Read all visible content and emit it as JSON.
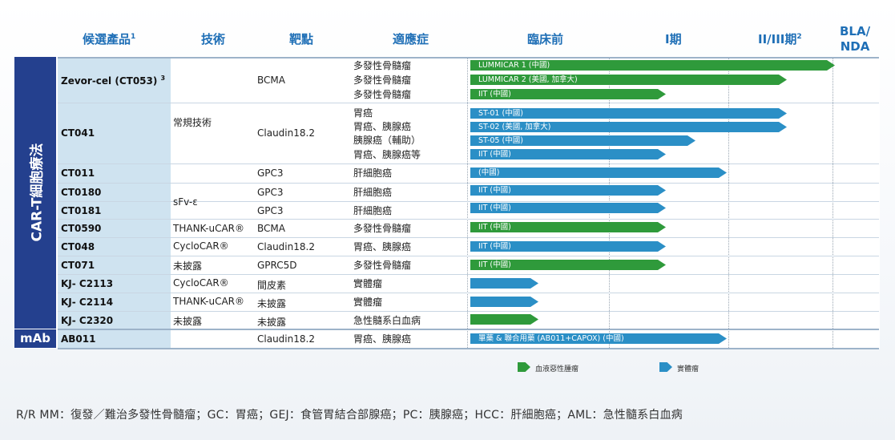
{
  "headers": {
    "candidate": "候選產品",
    "candidate_sup": "1",
    "technology": "技術",
    "target": "靶點",
    "indication": "適應症",
    "preclinical": "臨床前",
    "phase1": "I期",
    "phase23": "II/III期",
    "phase23_sup": "2",
    "bla_line1": "BLA/",
    "bla_line2": "NDA"
  },
  "side_labels": {
    "car_t": "CAR-T細胞療法",
    "mab": "mAb"
  },
  "products": {
    "zevor": "Zevor-cel (CT053)",
    "zevor_sup": "3",
    "ct041": "CT041",
    "ct011": "CT011",
    "ct0180": "CT0180",
    "ct0181": "CT0181",
    "ct0590": "CT0590",
    "ct048": "CT048",
    "ct071": "CT071",
    "kj2113": "KJ- C2113",
    "kj2114": "KJ- C2114",
    "kj2320": "KJ- C2320",
    "ab011": "AB011"
  },
  "technologies": {
    "conventional": "常規技術",
    "sfv": "sFv-ε",
    "ct0590": "THANK-uCAR®",
    "ct048": "CycloCAR®",
    "ct071": "未披露",
    "kj2113": "CycloCAR®",
    "kj2114": "THANK-uCAR®",
    "kj2320": "未披露"
  },
  "targets": {
    "zevor": "BCMA",
    "ct041": "Claudin18.2",
    "ct011": "GPC3",
    "ct0180": "GPC3",
    "ct0181": "GPC3",
    "ct0590": "BCMA",
    "ct048": "Claudin18.2",
    "ct071": "GPRC5D",
    "kj2113": "間皮素",
    "kj2114": "未披露",
    "kj2320": "未披露",
    "ab011": "Claudin18.2"
  },
  "indications": {
    "zevor_1": "多發性骨髓瘤",
    "zevor_2": "多發性骨髓瘤",
    "zevor_3": "多發性骨髓瘤",
    "ct041_1": "胃癌",
    "ct041_2": "胃癌、胰腺癌",
    "ct041_3": "胰腺癌（輔助）",
    "ct041_4": "胃癌、胰腺癌等",
    "ct011": "肝細胞癌",
    "ct0180": "肝細胞癌",
    "ct0181": "肝細胞癌",
    "ct0590": "多發性骨髓瘤",
    "ct048": "胃癌、胰腺癌",
    "ct071": "多發性骨髓瘤",
    "kj2113": "實體瘤",
    "kj2114": "實體瘤",
    "kj2320": "急性髓系白血病",
    "ab011": "胃癌、胰腺癌"
  },
  "bars": {
    "zevor_1": "LUMMICAR 1 (中國)",
    "zevor_2": "LUMMICAR 2 (美國, 加拿大)",
    "zevor_3": "IIT (中國)",
    "ct041_1": "ST-01 (中國)",
    "ct041_2": "ST-02 (美國, 加拿大)",
    "ct041_3": "ST-05 (中國)",
    "ct041_4": "IIT (中國)",
    "ct011": "(中國)",
    "ct0180": "IIT (中國)",
    "ct0181": "IIT (中國)",
    "ct0590": "IIT (中國)",
    "ct048": "IIT (中國)",
    "ct071": "IIT (中國)",
    "ab011": "單藥 & 聯合用藥 (AB011+CAPOX) (中國)"
  },
  "legend": {
    "heme": "血液惡性腫瘤",
    "solid": "實體瘤"
  },
  "colors": {
    "heme": "#2f9a3b",
    "solid": "#2b8fc6",
    "band": "#24408e",
    "product_bg": "#cfe3f0",
    "header": "#1f6fb6"
  },
  "footnote": "R/R MM：復發／難治多發性骨髓瘤；GC：胃癌；GEJ：食管胃結合部腺癌；PC：胰腺癌；HCC：肝細胞癌；AML：急性髓系白血病"
}
